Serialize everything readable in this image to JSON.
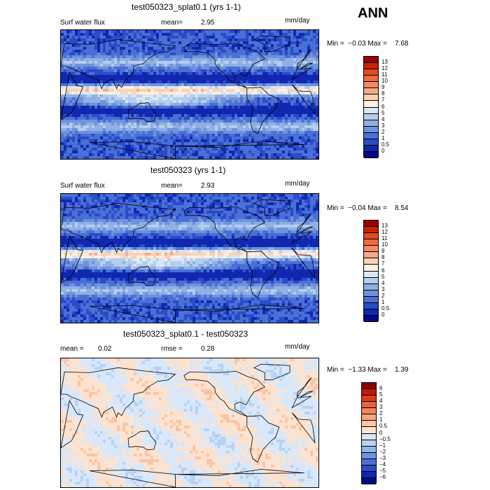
{
  "season": "ANN",
  "panels": [
    {
      "title": "test050323_splat0.1 (yrs 1-1)",
      "var_label": "Surf water flux",
      "stat_label": "mean=",
      "stat_value": "2.95",
      "units": "mm/day",
      "minmax": "Min =  −0.03 Max =    7.68",
      "levels": [
        "13",
        "12",
        "11",
        "10",
        "9",
        "8",
        "7",
        "6",
        "5",
        "4",
        "3",
        "2",
        "1",
        "0.5",
        "0"
      ],
      "colors": [
        "#990000",
        "#cc2200",
        "#e34a1f",
        "#f06a40",
        "#f58a60",
        "#f7a98a",
        "#fad2b3",
        "#fdf0dd",
        "#d8e6f7",
        "#b5cdee",
        "#8fb0e4",
        "#6e93dc",
        "#4a70d6",
        "#2a4cc8",
        "#1028b0",
        "#000b86"
      ],
      "field": "precip"
    },
    {
      "title": "test050323 (yrs 1-1)",
      "var_label": "Surf water flux",
      "stat_label": "mean=",
      "stat_value": "2.93",
      "units": "mm/day",
      "minmax": "Min =  −0.04 Max =    8.54",
      "levels": [
        "13",
        "12",
        "11",
        "10",
        "9",
        "8",
        "7",
        "6",
        "5",
        "4",
        "3",
        "2",
        "1",
        "0.5",
        "0"
      ],
      "colors": [
        "#990000",
        "#cc2200",
        "#e34a1f",
        "#f06a40",
        "#f58a60",
        "#f7a98a",
        "#fad2b3",
        "#fdf0dd",
        "#d8e6f7",
        "#b5cdee",
        "#8fb0e4",
        "#6e93dc",
        "#4a70d6",
        "#2a4cc8",
        "#1028b0",
        "#000b86"
      ],
      "field": "precip"
    },
    {
      "title": "test050323_splat0.1 - test050323",
      "mean_label": "mean =",
      "mean_value": "0.02",
      "rmse_label": "rmse =",
      "rmse_value": "0.28",
      "units": "mm/day",
      "minmax": "Min =  −1.33 Max =    1.39",
      "levels": [
        "6",
        "5",
        "4",
        "3",
        "2",
        "1",
        "0.5",
        "0",
        "−0.5",
        "−1",
        "−2",
        "−3",
        "−4",
        "−5",
        "−6"
      ],
      "colors": [
        "#8b0000",
        "#c21a00",
        "#dd3b1a",
        "#ee6238",
        "#f3875c",
        "#f6a582",
        "#f9c5a8",
        "#fde3cf",
        "#d8e8fa",
        "#b8d2f3",
        "#93b5ea",
        "#6d93df",
        "#4a70d6",
        "#2a4cc8",
        "#1028b0",
        "#000b86"
      ],
      "field": "diff"
    }
  ]
}
